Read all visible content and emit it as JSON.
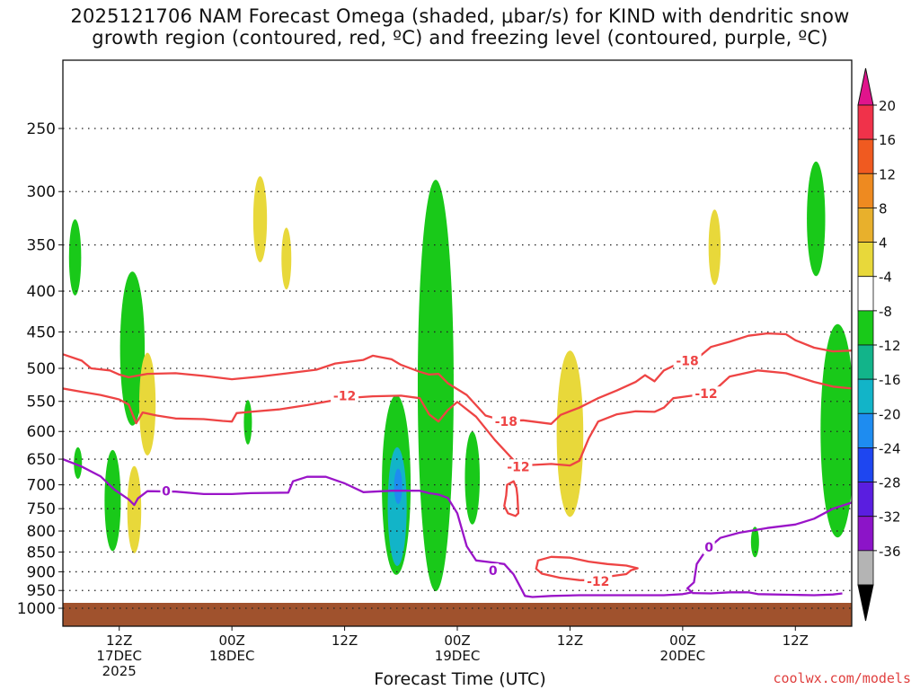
{
  "title": {
    "line1": "2025121706 NAM Forecast Omega (shaded, μbar/s) for KIND with dendritic snow",
    "line2": "growth region (contoured, red, ºC) and freezing level (contoured, purple, ºC)"
  },
  "chart_data": {
    "type": "heatmap",
    "title": "2025121706 NAM Forecast Omega (shaded, μbar/s) for KIND with dendritic snow growth region (contoured, red, ºC) and freezing level (contoured, purple, ºC)",
    "xlabel": "Forecast Time (UTC)",
    "ylabel": "",
    "x_range_hours_from_init": [
      0,
      84
    ],
    "y_axis": "pressure (hPa), log scale",
    "ylim": [
      1000,
      200
    ],
    "y_ticks": [
      250,
      300,
      350,
      400,
      450,
      500,
      550,
      600,
      650,
      700,
      750,
      800,
      850,
      900,
      950,
      1000
    ],
    "x_ticks": [
      {
        "hour": 6,
        "line1": "12Z",
        "line2": "17DEC",
        "line3": "2025"
      },
      {
        "hour": 18,
        "line1": "00Z",
        "line2": "18DEC",
        "line3": ""
      },
      {
        "hour": 30,
        "line1": "12Z",
        "line2": "",
        "line3": ""
      },
      {
        "hour": 42,
        "line1": "00Z",
        "line2": "19DEC",
        "line3": ""
      },
      {
        "hour": 54,
        "line1": "12Z",
        "line2": "",
        "line3": ""
      },
      {
        "hour": 66,
        "line1": "00Z",
        "line2": "20DEC",
        "line3": ""
      },
      {
        "hour": 78,
        "line1": "12Z",
        "line2": "",
        "line3": ""
      }
    ],
    "colorbar": {
      "labels": [
        "20",
        "16",
        "12",
        "8",
        "4",
        "-4",
        "-8",
        "-12",
        "-16",
        "-20",
        "-24",
        "-28",
        "-32",
        "-36"
      ],
      "colors": [
        "#f0324a",
        "#f05a20",
        "#ee8a20",
        "#e8b02c",
        "#e8d83a",
        "#ffffff",
        "#19c919",
        "#12b48a",
        "#12b4c8",
        "#1e8cf0",
        "#1e46f0",
        "#5a1ee0",
        "#8c14c8",
        "#b4b4b4"
      ],
      "top_triangle_color": "#e0148c",
      "bottom_triangle_color": "#000000"
    },
    "contour_labels": [
      {
        "series": "dendritic",
        "text": "-18",
        "hour": 47.2,
        "p": 583
      },
      {
        "series": "dendritic",
        "text": "-18",
        "hour": 66.5,
        "p": 489
      },
      {
        "series": "dendritic",
        "text": "-12",
        "hour": 30.0,
        "p": 541
      },
      {
        "series": "dendritic",
        "text": "-12",
        "hour": 48.5,
        "p": 664
      },
      {
        "series": "dendritic",
        "text": "-12",
        "hour": 68.5,
        "p": 538
      },
      {
        "series": "dendritic",
        "text": "-12",
        "hour": 57.0,
        "p": 925
      },
      {
        "series": "freezing",
        "text": "0",
        "hour": 11.0,
        "p": 713
      },
      {
        "series": "freezing",
        "text": "0",
        "hour": 45.8,
        "p": 897
      },
      {
        "series": "freezing",
        "text": "0",
        "hour": 68.8,
        "p": 838
      }
    ],
    "series": [
      {
        "name": "-18C isotherm (dendritic top)",
        "color": "#ee4444",
        "points": [
          [
            0,
            480
          ],
          [
            2,
            489
          ],
          [
            3,
            500
          ],
          [
            5,
            503
          ],
          [
            6,
            509
          ],
          [
            7,
            513
          ],
          [
            9,
            508
          ],
          [
            12,
            507
          ],
          [
            15,
            511
          ],
          [
            18,
            516
          ],
          [
            21,
            512
          ],
          [
            24,
            507
          ],
          [
            27,
            502
          ],
          [
            29,
            493
          ],
          [
            32,
            488
          ],
          [
            33,
            482
          ],
          [
            35,
            487
          ],
          [
            36,
            495
          ],
          [
            38,
            505
          ],
          [
            39,
            509
          ],
          [
            40,
            508
          ],
          [
            41,
            522
          ],
          [
            43,
            540
          ],
          [
            45,
            573
          ],
          [
            47,
            582
          ],
          [
            49,
            581
          ],
          [
            52,
            587
          ],
          [
            53,
            572
          ],
          [
            55,
            560
          ],
          [
            57,
            545
          ],
          [
            59,
            533
          ],
          [
            61,
            520
          ],
          [
            62,
            510
          ],
          [
            63,
            519
          ],
          [
            64,
            503
          ],
          [
            66,
            490
          ],
          [
            67,
            492
          ],
          [
            69,
            470
          ],
          [
            71,
            463
          ],
          [
            73,
            455
          ],
          [
            75,
            452
          ],
          [
            77,
            453
          ],
          [
            78,
            461
          ],
          [
            80,
            471
          ],
          [
            82,
            476
          ],
          [
            84,
            475
          ]
        ]
      },
      {
        "name": "-12C isotherm (dendritic bottom)",
        "color": "#ee4444",
        "points": [
          [
            0,
            530
          ],
          [
            2,
            535
          ],
          [
            4,
            540
          ],
          [
            6,
            547
          ],
          [
            7,
            555
          ],
          [
            7.8,
            586
          ],
          [
            8.5,
            568
          ],
          [
            10,
            573
          ],
          [
            12,
            578
          ],
          [
            15,
            579
          ],
          [
            17,
            582
          ],
          [
            18,
            583
          ],
          [
            18.5,
            569
          ],
          [
            20,
            567
          ],
          [
            23,
            563
          ],
          [
            26,
            556
          ],
          [
            29,
            548
          ],
          [
            31,
            544
          ],
          [
            33,
            542
          ],
          [
            36,
            541
          ],
          [
            38,
            545
          ],
          [
            39,
            571
          ],
          [
            40,
            583
          ],
          [
            41,
            564
          ],
          [
            42,
            551
          ],
          [
            44,
            575
          ],
          [
            46,
            615
          ],
          [
            48,
            652
          ],
          [
            50,
            661
          ],
          [
            52,
            659
          ],
          [
            54,
            662
          ],
          [
            55,
            653
          ],
          [
            56,
            612
          ],
          [
            57,
            583
          ],
          [
            59,
            571
          ],
          [
            61,
            566
          ],
          [
            63,
            567
          ],
          [
            64,
            560
          ],
          [
            65,
            545
          ],
          [
            67,
            541
          ],
          [
            69,
            538
          ],
          [
            71,
            512
          ],
          [
            74,
            503
          ],
          [
            77,
            507
          ],
          [
            80,
            520
          ],
          [
            82,
            527
          ],
          [
            84,
            530
          ]
        ]
      },
      {
        "name": "-12C closed contour A",
        "color": "#ee4444",
        "closed": true,
        "points": [
          [
            47.3,
            700
          ],
          [
            48,
            693
          ],
          [
            48.3,
            706
          ],
          [
            48.4,
            723
          ],
          [
            48.5,
            760
          ],
          [
            48.2,
            766
          ],
          [
            47.4,
            760
          ],
          [
            47,
            744
          ],
          [
            47.2,
            722
          ]
        ]
      },
      {
        "name": "-12C closed contour B",
        "color": "#ee4444",
        "closed": true,
        "points": [
          [
            50.6,
            871
          ],
          [
            52,
            862
          ],
          [
            54,
            864
          ],
          [
            56,
            874
          ],
          [
            58,
            880
          ],
          [
            60,
            884
          ],
          [
            61.2,
            891
          ],
          [
            60.5,
            896
          ],
          [
            60,
            906
          ],
          [
            58,
            913
          ],
          [
            57,
            923
          ],
          [
            55,
            922
          ],
          [
            53,
            916
          ],
          [
            51,
            905
          ],
          [
            50.4,
            892
          ]
        ]
      },
      {
        "name": "0C isotherm (freezing level)",
        "color": "#9a14c8",
        "points": [
          [
            0,
            650
          ],
          [
            2,
            664
          ],
          [
            4,
            683
          ],
          [
            5.5,
            710
          ],
          [
            7,
            730
          ],
          [
            7.6,
            742
          ],
          [
            8,
            728
          ],
          [
            9,
            713
          ],
          [
            12,
            714
          ],
          [
            15,
            719
          ],
          [
            18,
            719
          ],
          [
            20,
            717
          ],
          [
            24,
            716
          ],
          [
            24.5,
            693
          ],
          [
            26,
            684
          ],
          [
            28,
            684
          ],
          [
            30,
            697
          ],
          [
            32,
            715
          ],
          [
            35,
            712
          ],
          [
            38,
            712
          ],
          [
            39,
            717
          ],
          [
            40,
            720
          ],
          [
            41,
            727
          ],
          [
            42,
            760
          ],
          [
            43,
            836
          ],
          [
            44,
            871
          ],
          [
            46,
            877
          ],
          [
            47,
            880
          ],
          [
            48,
            907
          ],
          [
            48.8,
            945
          ],
          [
            49.2,
            965
          ],
          [
            50,
            968
          ],
          [
            52,
            965
          ],
          [
            55,
            963
          ],
          [
            60,
            963
          ],
          [
            64,
            963
          ],
          [
            66,
            960
          ],
          [
            67,
            955
          ],
          [
            66.5,
            944
          ],
          [
            67.2,
            928
          ],
          [
            67.5,
            880
          ],
          [
            68.5,
            845
          ],
          [
            70,
            816
          ],
          [
            72,
            804
          ],
          [
            75,
            793
          ],
          [
            78,
            785
          ],
          [
            80,
            772
          ],
          [
            82,
            750
          ],
          [
            84,
            737
          ]
        ]
      },
      {
        "name": "0C isotherm (surface segment)",
        "color": "#9a14c8",
        "points": [
          [
            67,
            957
          ],
          [
            69,
            958
          ],
          [
            71,
            955
          ],
          [
            73,
            955
          ],
          [
            74,
            960
          ],
          [
            78,
            962
          ],
          [
            80,
            963
          ],
          [
            82,
            961
          ],
          [
            83,
            958
          ]
        ]
      }
    ],
    "shaded_areas": [
      {
        "omega_range": [
          -8,
          -4
        ],
        "color": "#19c919",
        "hour": 1.3,
        "p_top": 325,
        "p_bottom": 405
      },
      {
        "omega_range": [
          -8,
          -4
        ],
        "color": "#19c919",
        "hour": 1.6,
        "p_top": 628,
        "p_bottom": 688
      },
      {
        "omega_range": [
          -8,
          -4
        ],
        "color": "#19c919",
        "hour": 5.3,
        "p_top": 633,
        "p_bottom": 848
      },
      {
        "omega_range": [
          -8,
          -4
        ],
        "color": "#19c919",
        "hour": 7.4,
        "p_top": 378,
        "p_bottom": 590
      },
      {
        "omega_range": [
          4,
          8
        ],
        "color": "#e8d83a",
        "hour": 9.0,
        "p_top": 478,
        "p_bottom": 643
      },
      {
        "omega_range": [
          4,
          8
        ],
        "color": "#e8d83a",
        "hour": 7.6,
        "p_top": 663,
        "p_bottom": 853
      },
      {
        "omega_range": [
          4,
          8
        ],
        "color": "#e8d83a",
        "hour": 21.0,
        "p_top": 287,
        "p_bottom": 368
      },
      {
        "omega_range": [
          4,
          8
        ],
        "color": "#e8d83a",
        "hour": 23.8,
        "p_top": 333,
        "p_bottom": 398
      },
      {
        "omega_range": [
          -8,
          -4
        ],
        "color": "#19c919",
        "hour": 19.7,
        "p_top": 548,
        "p_bottom": 623
      },
      {
        "omega_range": [
          -8,
          -4
        ],
        "color": "#19c919",
        "hour": 35.5,
        "p_top": 540,
        "p_bottom": 908
      },
      {
        "omega_range": [
          -8,
          -4
        ],
        "color": "#19c919",
        "hour": 39.7,
        "p_top": 290,
        "p_bottom": 952
      },
      {
        "omega_range": [
          -8,
          -4
        ],
        "color": "#19c919",
        "hour": 43.6,
        "p_top": 600,
        "p_bottom": 785
      },
      {
        "omega_range": [
          -16,
          -12
        ],
        "color": "#12b4c8",
        "hour": 35.6,
        "p_top": 628,
        "p_bottom": 885
      },
      {
        "omega_range": [
          -20,
          -16
        ],
        "color": "#1e8cf0",
        "hour": 35.7,
        "p_top": 668,
        "p_bottom": 740
      },
      {
        "omega_range": [
          4,
          8
        ],
        "color": "#e8d83a",
        "hour": 54.0,
        "p_top": 475,
        "p_bottom": 768
      },
      {
        "omega_range": [
          4,
          8
        ],
        "color": "#e8d83a",
        "hour": 69.4,
        "p_top": 316,
        "p_bottom": 393
      },
      {
        "omega_range": [
          -8,
          -4
        ],
        "color": "#19c919",
        "hour": 80.2,
        "p_top": 275,
        "p_bottom": 383
      },
      {
        "omega_range": [
          -8,
          -4
        ],
        "color": "#19c919",
        "hour": 82.5,
        "p_top": 440,
        "p_bottom": 815
      },
      {
        "omega_range": [
          -8,
          -4
        ],
        "color": "#19c919",
        "hour": 73.7,
        "p_top": 790,
        "p_bottom": 863
      }
    ],
    "terrain_color": "#a0522d"
  },
  "watermark": "coolwx.com/models"
}
